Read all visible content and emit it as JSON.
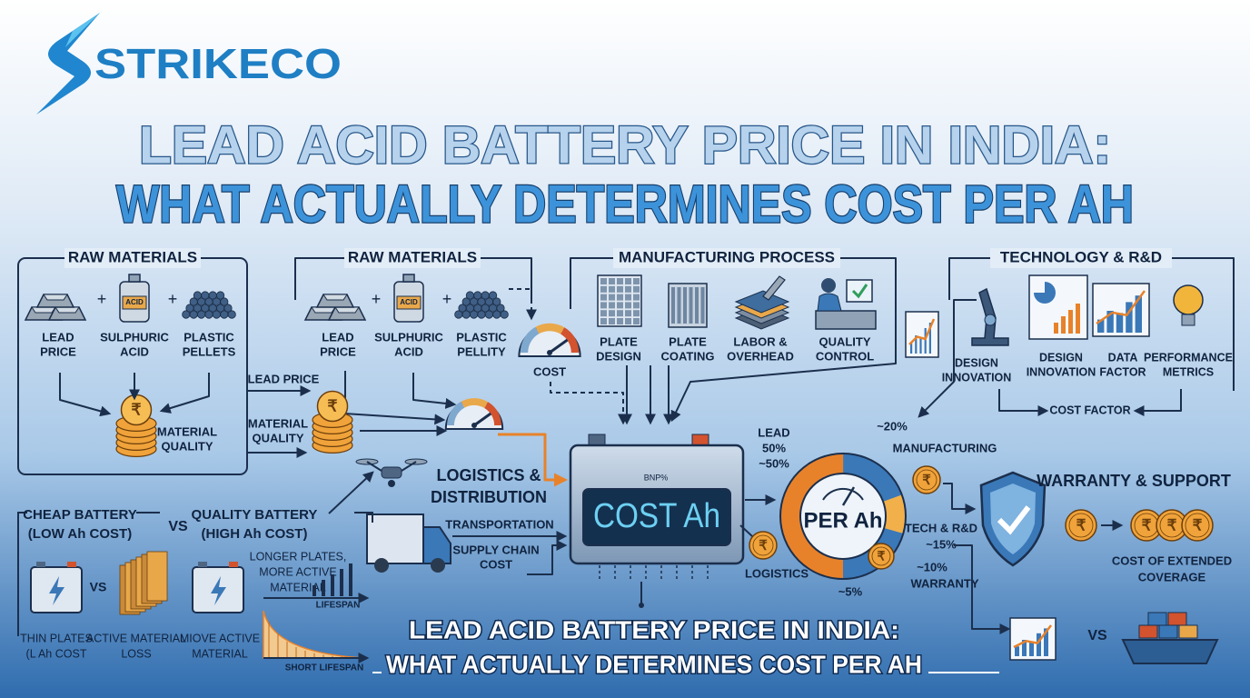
{
  "logo": "STRIKECO",
  "title": [
    "LEAD ACID BATTERY PRICE IN INDIA:",
    "WHAT ACTUALLY DETERMINES COST PER AH"
  ],
  "currency_symbol": "₹",
  "raw_materials_1": {
    "heading": "RAW MATERIALS",
    "acid_tag": "ACID",
    "items": [
      [
        "LEAD",
        "PRICE"
      ],
      [
        "SULPHURIC",
        "ACID"
      ],
      [
        "PLASTIC",
        "PELLETS"
      ]
    ],
    "material_quality": [
      "MATERIAL",
      "QUALITY"
    ]
  },
  "raw_materials_2": {
    "heading": "RAW MATERIALS",
    "acid_tag": "ACID",
    "items": [
      [
        "LEAD",
        "PRICE"
      ],
      [
        "SULPHURIC",
        "ACID"
      ],
      [
        "PLASTIC",
        "PELLITY"
      ]
    ],
    "cost": "COST"
  },
  "flow_labels": {
    "lead_price": "LEAD PRICE",
    "material_quality": [
      "MATERIAL",
      "QUALITY"
    ]
  },
  "manufacturing": {
    "heading": "MANUFACTURING PROCESS",
    "items": [
      [
        "PLATE",
        "DESIGN"
      ],
      [
        "PLATE",
        "COATING"
      ],
      [
        "LABOR &",
        "OVERHEAD"
      ],
      [
        "QUALITY",
        "CONTROL"
      ]
    ]
  },
  "technology": {
    "heading": "TECHNOLOGY & R&D",
    "items": [
      [
        "DESIGN",
        "INNOVATION"
      ],
      [
        "DESIGN",
        "INNOVATION"
      ],
      [
        "DATA",
        "FACTOR"
      ],
      [
        "PERFORMANCE",
        "METRICS"
      ]
    ],
    "cost_factor": "COST FACTOR"
  },
  "battery": {
    "brand": "BNP%",
    "screen": "COST Ah"
  },
  "logistics": {
    "heading": [
      "LOGISTICS &",
      "DISTRIBUTION"
    ],
    "transportation": "TRANSPORTATION",
    "supply_chain": [
      "SUPPLY CHAIN",
      "COST"
    ]
  },
  "breakdown": {
    "center": "PER Ah",
    "lead": [
      "LEAD",
      "50%",
      "~50%"
    ],
    "manufacturing": [
      "~20%",
      "MANUFACTURING"
    ],
    "tech": [
      "TECH & R&D",
      "~15%"
    ],
    "warranty": [
      "~10%",
      "WARRANTY"
    ],
    "logistics_share": "~5%",
    "logistics": "LOGISTICS"
  },
  "warranty": {
    "heading": "WARRANTY & SUPPORT",
    "coverage": [
      "COST OF EXTENDED",
      "COVERAGE"
    ],
    "vs": "VS"
  },
  "comparison": {
    "cheap": [
      "CHEAP BATTERY",
      "(LOW Ah COST)"
    ],
    "vs_top": "VS",
    "quality": [
      "QUALITY BATTERY",
      "(HIGH Ah COST)"
    ],
    "vs_mid": "VS",
    "thin_plates": [
      "THIN PLATES",
      "(L Ah COST"
    ],
    "material_loss": [
      "ACTIVE MATERIAL",
      "LOSS"
    ],
    "move_active": [
      "MIOVE ACTIVE",
      "MATERIAL"
    ],
    "longer_plates": [
      "LONGER PLATES,",
      "MORE ACTIVE",
      "MATERIAL"
    ],
    "lifespan": "LIFESPAN",
    "short_lifespan": "SHORT LIFESPAN"
  },
  "footer_title": [
    "LEAD ACID BATTERY PRICE IN INDIA:",
    "WHAT ACTUALLY DETERMINES COST PER AH"
  ]
}
